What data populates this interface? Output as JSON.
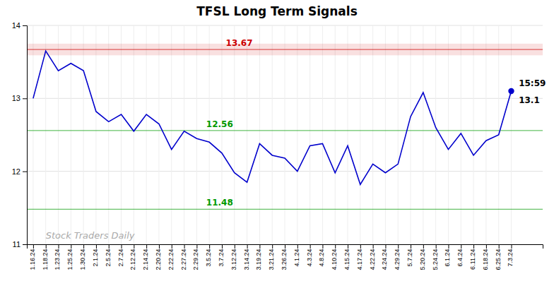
{
  "chart_data": {
    "type": "line",
    "title": "TFSL Long Term Signals",
    "categories": [
      "1.16.24",
      "1.18.24",
      "1.23.24",
      "1.25.24",
      "1.30.24",
      "2.1.24",
      "2.5.24",
      "2.7.24",
      "2.12.24",
      "2.14.24",
      "2.20.24",
      "2.22.24",
      "2.27.24",
      "2.29.24",
      "3.5.24",
      "3.7.24",
      "3.12.24",
      "3.14.24",
      "3.19.24",
      "3.21.24",
      "3.26.24",
      "4.1.24",
      "4.3.24",
      "4.8.24",
      "4.10.24",
      "4.15.24",
      "4.17.24",
      "4.22.24",
      "4.24.24",
      "4.29.24",
      "5.7.24",
      "5.20.24",
      "5.24.24",
      "6.1.24",
      "6.4.24",
      "6.11.24",
      "6.18.24",
      "6.25.24",
      "7.3.24"
    ],
    "values": [
      13.0,
      13.65,
      13.38,
      13.48,
      13.38,
      12.82,
      12.68,
      12.78,
      12.55,
      12.78,
      12.65,
      12.3,
      12.55,
      12.45,
      12.4,
      12.25,
      11.98,
      11.85,
      12.38,
      12.22,
      12.18,
      12.0,
      12.35,
      12.38,
      11.98,
      12.35,
      11.82,
      12.1,
      11.98,
      12.1,
      12.75,
      13.08,
      12.6,
      12.3,
      12.52,
      12.22,
      12.42,
      12.5,
      13.1
    ],
    "value_labels": [
      null,
      null,
      null,
      null,
      null,
      null,
      null,
      null,
      null,
      null,
      null,
      null,
      null,
      null,
      null,
      null,
      null,
      null,
      null,
      null,
      null,
      null,
      null,
      null,
      null,
      null,
      null,
      null,
      null,
      null,
      null,
      null,
      null,
      null,
      null,
      null,
      null,
      null,
      "13.1"
    ],
    "color": "#0000cc",
    "reference_lines": [
      {
        "value": 13.67,
        "label": "13.67",
        "color": "#cc0000",
        "band": [
          13.59,
          13.75
        ]
      },
      {
        "value": 12.56,
        "label": "12.56",
        "color": "#009900"
      },
      {
        "value": 11.48,
        "label": "11.48",
        "color": "#009900"
      }
    ],
    "annotations": [
      "15:59"
    ],
    "watermark": "Stock Traders Daily",
    "ylim": [
      11.0,
      14.0
    ],
    "yticks": [
      11,
      12,
      13,
      14
    ],
    "grid": true
  }
}
